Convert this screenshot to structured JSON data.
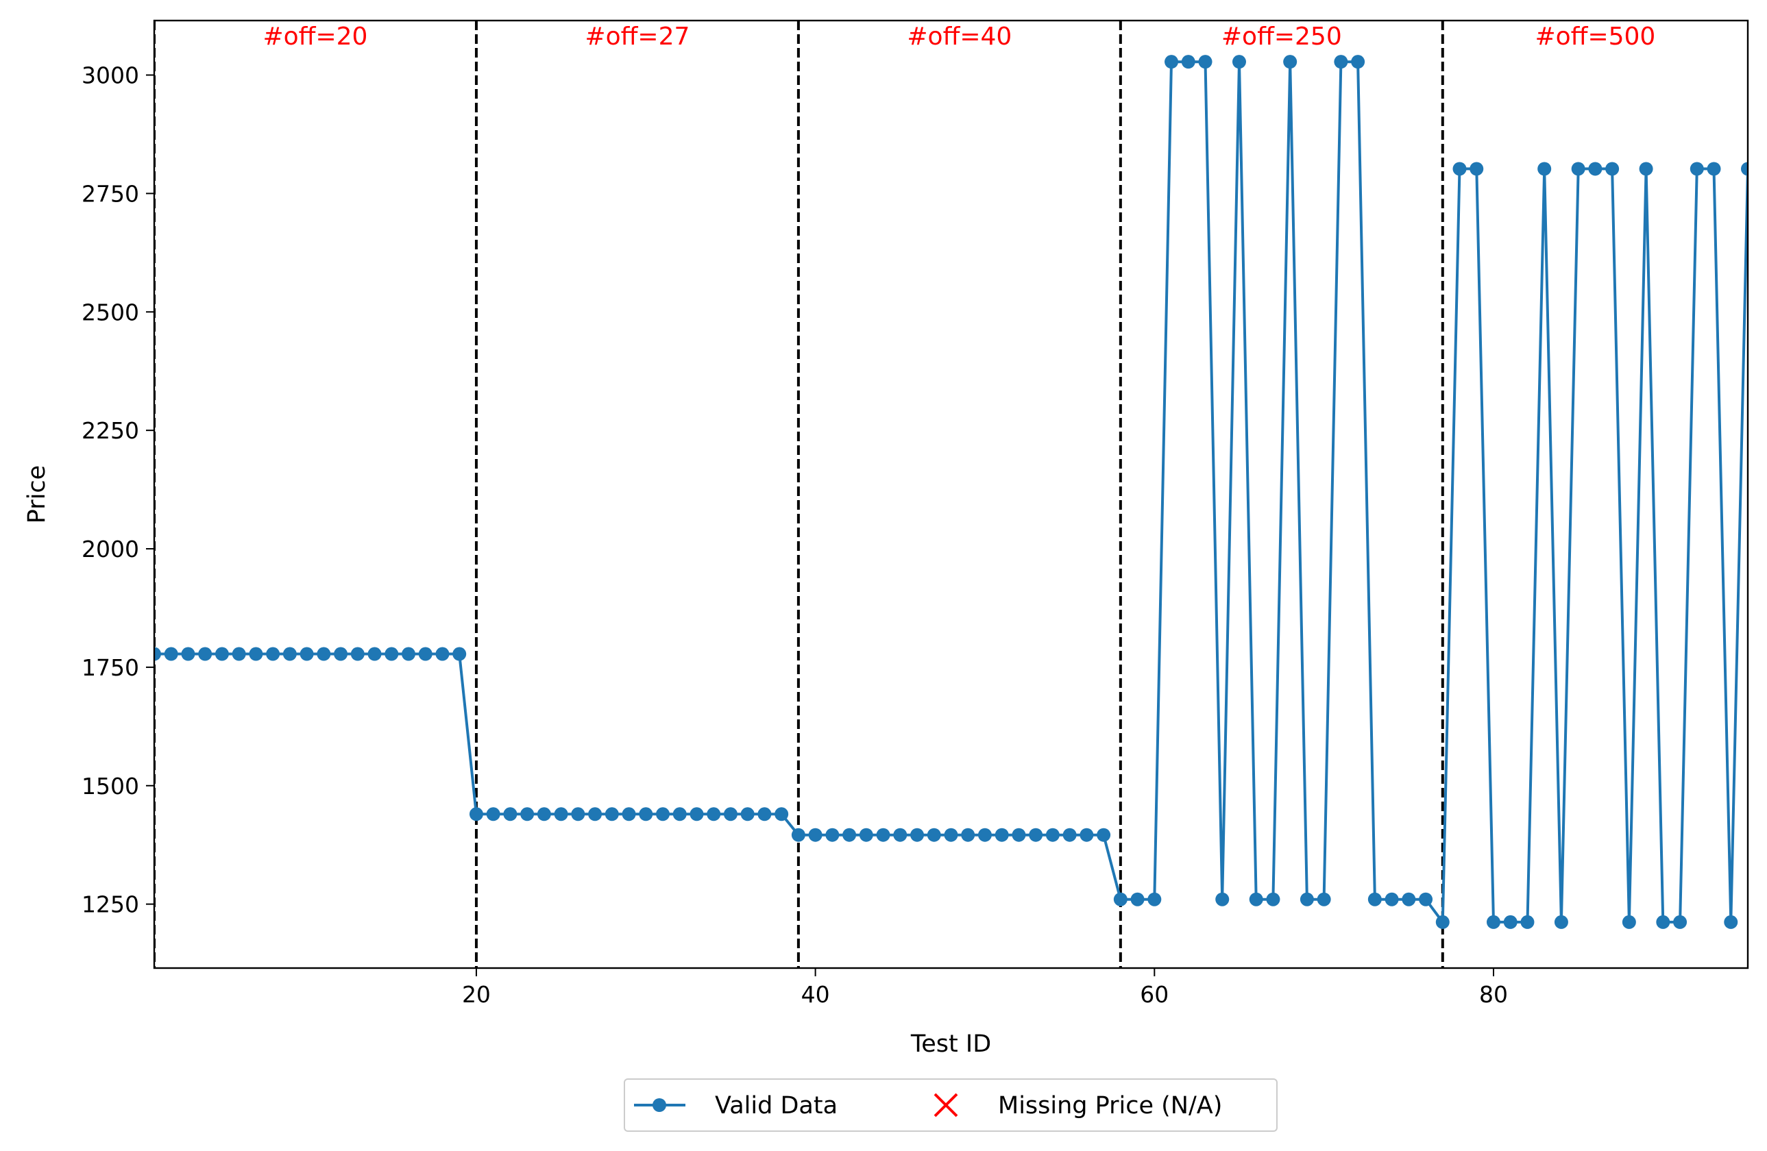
{
  "chart_data": {
    "type": "line",
    "xlabel": "Test ID",
    "ylabel": "Price",
    "xlim": [
      1,
      95
    ],
    "ylim": [
      1115,
      3115
    ],
    "xticks": [
      20,
      40,
      60,
      80
    ],
    "yticks": [
      1250,
      1500,
      1750,
      2000,
      2250,
      2500,
      2750,
      3000
    ],
    "grid": false,
    "legend_position": "bottom-center",
    "colors": {
      "series": "#1f77b4",
      "missing": "#ff0000",
      "segment_label": "#ff0000",
      "divider": "#000000"
    },
    "segments": [
      {
        "x": 1,
        "label": "#off=20"
      },
      {
        "x": 20,
        "label": "#off=27"
      },
      {
        "x": 39,
        "label": "#off=40"
      },
      {
        "x": 58,
        "label": "#off=250"
      },
      {
        "x": 77,
        "label": "#off=500"
      }
    ],
    "series": [
      {
        "name": "Valid Data",
        "x": [
          1,
          2,
          3,
          4,
          5,
          6,
          7,
          8,
          9,
          10,
          11,
          12,
          13,
          14,
          15,
          16,
          17,
          18,
          19,
          20,
          21,
          22,
          23,
          24,
          25,
          26,
          27,
          28,
          29,
          30,
          31,
          32,
          33,
          34,
          35,
          36,
          37,
          38,
          39,
          40,
          41,
          42,
          43,
          44,
          45,
          46,
          47,
          48,
          49,
          50,
          51,
          52,
          53,
          54,
          55,
          56,
          57,
          58,
          59,
          60,
          61,
          62,
          63,
          64,
          65,
          66,
          67,
          68,
          69,
          70,
          71,
          72,
          73,
          74,
          75,
          76,
          77,
          78,
          79,
          80,
          81,
          82,
          83,
          84,
          85,
          86,
          87,
          88,
          89,
          90,
          91,
          92,
          93,
          94,
          95
        ],
        "values": [
          1778,
          1778,
          1778,
          1778,
          1778,
          1778,
          1778,
          1778,
          1778,
          1778,
          1778,
          1778,
          1778,
          1778,
          1778,
          1778,
          1778,
          1778,
          1778,
          1440,
          1440,
          1440,
          1440,
          1440,
          1440,
          1440,
          1440,
          1440,
          1440,
          1440,
          1440,
          1440,
          1440,
          1440,
          1440,
          1440,
          1440,
          1440,
          1396,
          1396,
          1396,
          1396,
          1396,
          1396,
          1396,
          1396,
          1396,
          1396,
          1396,
          1396,
          1396,
          1396,
          1396,
          1396,
          1396,
          1396,
          1396,
          1260,
          1260,
          1260,
          3028,
          3028,
          3028,
          1260,
          3028,
          1260,
          1260,
          3028,
          1260,
          1260,
          3028,
          3028,
          1260,
          1260,
          1260,
          1260,
          1212,
          2802,
          2802,
          1212,
          1212,
          1212,
          2802,
          1212,
          2802,
          2802,
          2802,
          1212,
          2802,
          1212,
          1212,
          2802,
          2802,
          1212,
          2802
        ]
      },
      {
        "name": "Missing Price (N/A)",
        "x": [],
        "values": []
      }
    ]
  }
}
